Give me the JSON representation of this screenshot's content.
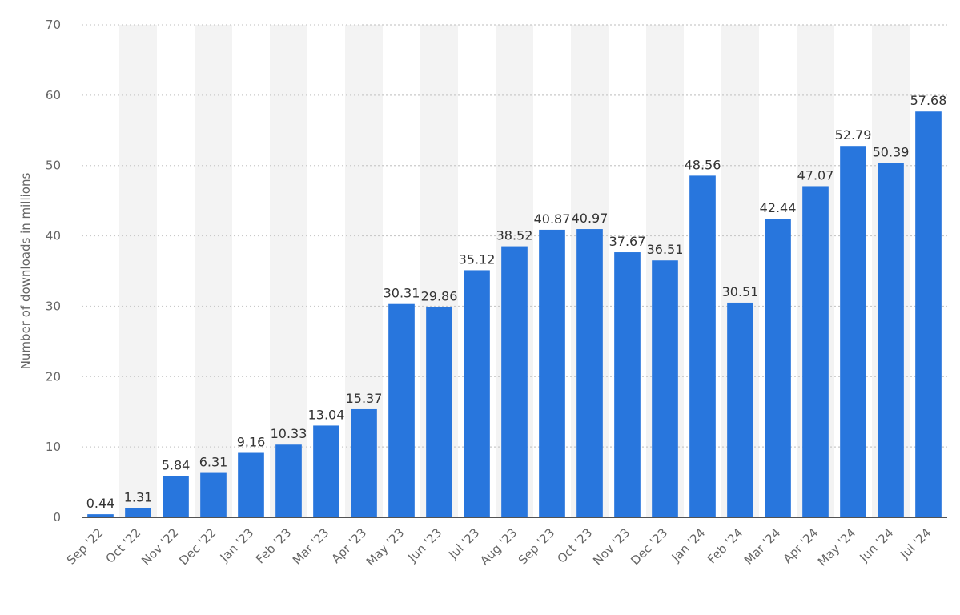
{
  "chart_data": {
    "type": "bar",
    "title": "",
    "xlabel": "",
    "ylabel": "Number of downloads in millions",
    "ylim": [
      0,
      70
    ],
    "yticks": [
      0,
      10,
      20,
      30,
      40,
      50,
      60,
      70
    ],
    "grid": true,
    "categories": [
      "Sep '22",
      "Oct '22",
      "Nov '22",
      "Dec '22",
      "Jan '23",
      "Feb '23",
      "Mar '23",
      "Apr '23",
      "May '23",
      "Jun '23",
      "Jul '23",
      "Aug '23",
      "Sep '23",
      "Oct '23",
      "Nov '23",
      "Dec '23",
      "Jan '24",
      "Feb '24",
      "Mar '24",
      "Apr '24",
      "May '24",
      "Jun '24",
      "Jul '24"
    ],
    "values": [
      0.44,
      1.31,
      5.84,
      6.31,
      9.16,
      10.33,
      13.04,
      15.37,
      30.31,
      29.86,
      35.12,
      38.52,
      40.87,
      40.97,
      37.67,
      36.51,
      48.56,
      30.51,
      42.44,
      47.07,
      52.79,
      50.39,
      57.68
    ],
    "data_labels": [
      "0.44",
      "1.31",
      "5.84",
      "6.31",
      "9.16",
      "10.33",
      "13.04",
      "15.37",
      "30.31",
      "29.86",
      "35.12",
      "38.52",
      "40.87",
      "40.97",
      "37.67",
      "36.51",
      "48.56",
      "30.51",
      "42.44",
      "47.07",
      "52.79",
      "50.39",
      "57.68"
    ],
    "colors": {
      "bar": "#2876dd",
      "band": "#f3f3f3",
      "grid": "#c9c9c9",
      "axis": "#1a1a1a"
    }
  }
}
